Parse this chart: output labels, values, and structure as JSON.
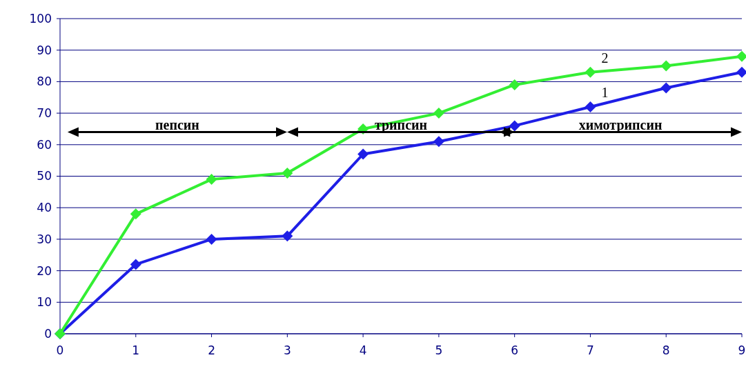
{
  "chart_data": {
    "type": "line",
    "x": [
      0,
      1,
      2,
      3,
      4,
      5,
      6,
      7,
      8,
      9
    ],
    "series": [
      {
        "name": "1",
        "color": "#1e1ee6",
        "values": [
          0,
          22,
          30,
          31,
          57,
          61,
          66,
          72,
          78,
          83
        ]
      },
      {
        "name": "2",
        "color": "#33ee33",
        "values": [
          0,
          38,
          49,
          51,
          65,
          70,
          79,
          83,
          85,
          88
        ]
      }
    ],
    "xlim": [
      0,
      9
    ],
    "xticks": [
      0,
      1,
      2,
      3,
      4,
      5,
      6,
      7,
      8,
      9
    ],
    "ylim": [
      0,
      100
    ],
    "yticks": [
      0,
      10,
      20,
      30,
      40,
      50,
      60,
      70,
      80,
      90,
      100
    ],
    "grid": "y",
    "marker": "diamond",
    "line_style": "solid",
    "annotations": [
      "пепсин",
      "трипсин",
      "химотрипсин"
    ]
  }
}
